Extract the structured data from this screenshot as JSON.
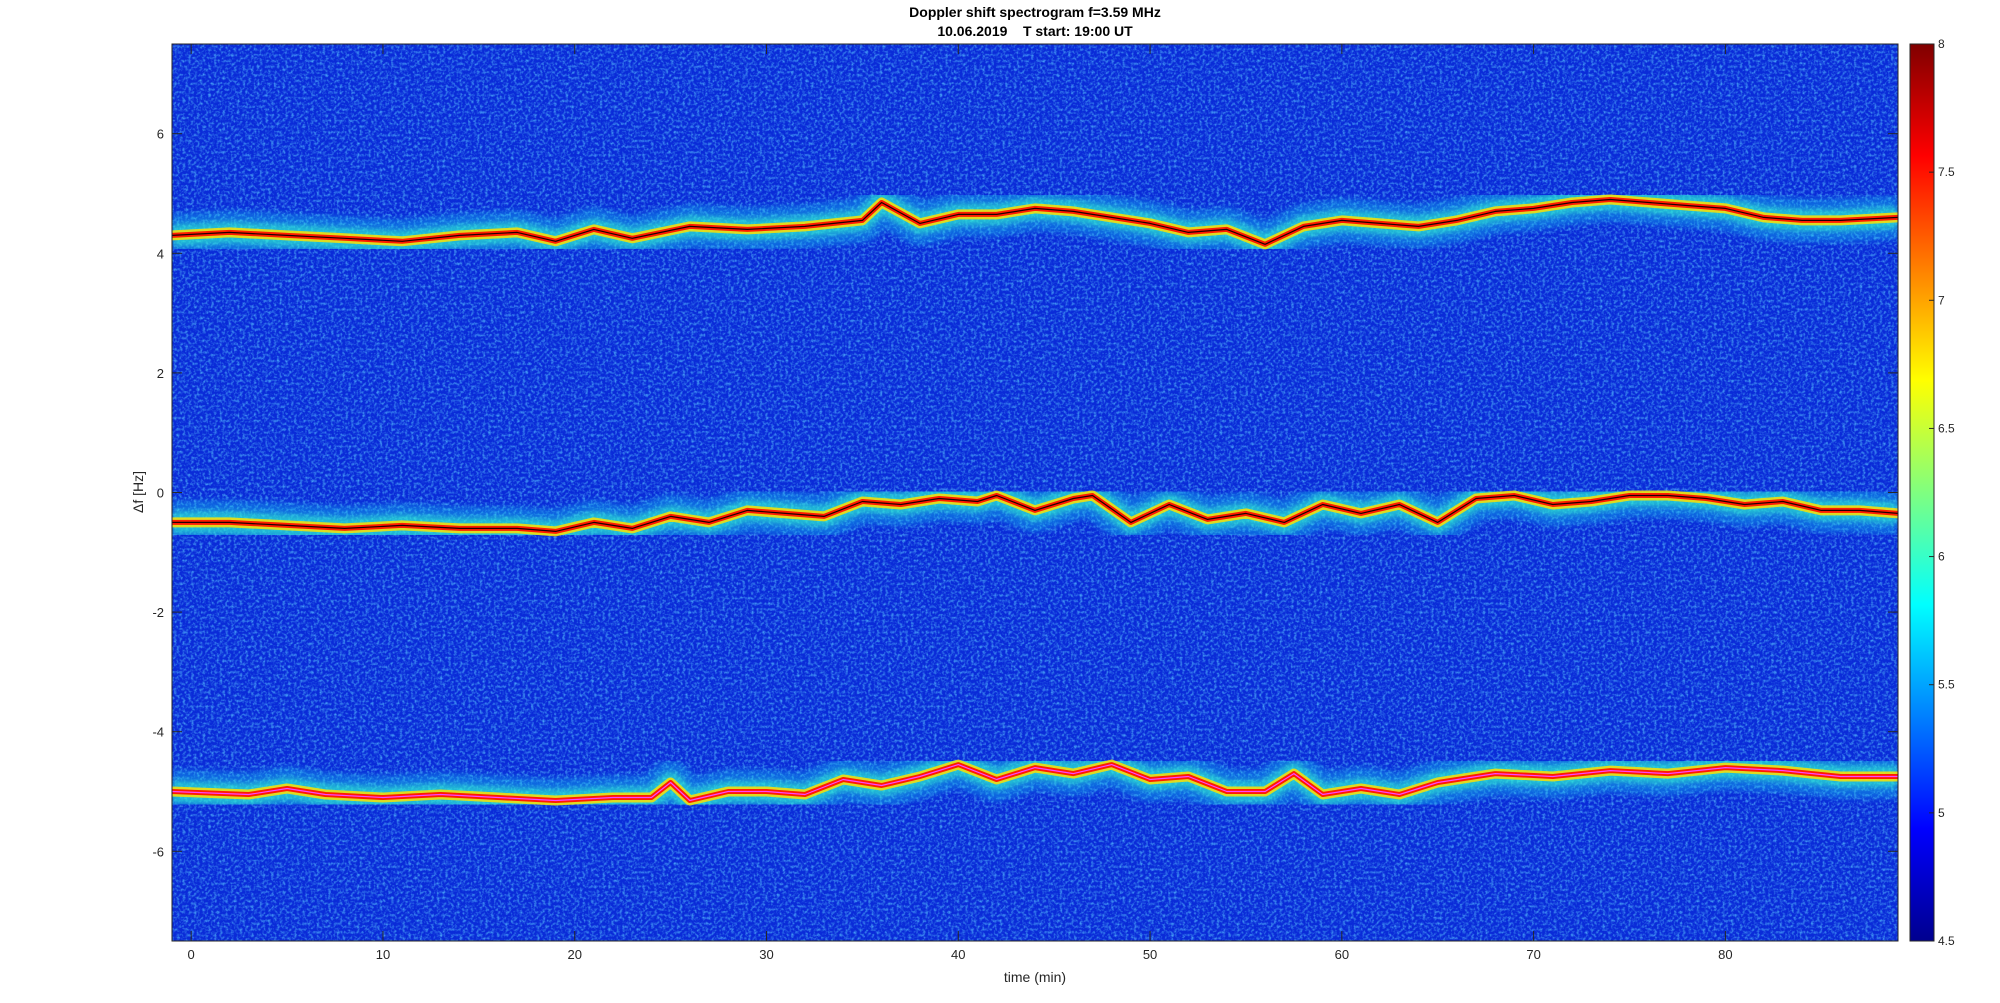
{
  "chart_data": {
    "type": "heatmap",
    "title": "Doppler shift spectrogram f=3.59 MHz",
    "subtitle": "10.06.2019    T start: 19:00 UT",
    "xlabel": "time (min)",
    "ylabel": "Δf [Hz]",
    "xlim": [
      -1,
      89
    ],
    "ylim": [
      -7.5,
      7.5
    ],
    "xticks": [
      0,
      10,
      20,
      30,
      40,
      50,
      60,
      70,
      80
    ],
    "yticks": [
      -6,
      -4,
      -2,
      0,
      2,
      4,
      6
    ],
    "colorbar": {
      "range": [
        4.5,
        8
      ],
      "ticks": [
        4.5,
        5,
        5.5,
        6,
        6.5,
        7,
        7.5,
        8
      ],
      "colormap": "jet"
    },
    "series": [
      {
        "x": [
          -1,
          2,
          5,
          8,
          11,
          14,
          17,
          19,
          21,
          23,
          26,
          29,
          32,
          35,
          36,
          38,
          40,
          42,
          44,
          46,
          48,
          50,
          52,
          54,
          56,
          58,
          60,
          62,
          64,
          66,
          68,
          70,
          72,
          74,
          76,
          78,
          80,
          82,
          84,
          86,
          89
        ],
        "y": [
          4.3,
          4.35,
          4.3,
          4.25,
          4.2,
          4.3,
          4.35,
          4.2,
          4.4,
          4.25,
          4.45,
          4.4,
          4.45,
          4.55,
          4.85,
          4.5,
          4.65,
          4.65,
          4.75,
          4.7,
          4.6,
          4.5,
          4.35,
          4.4,
          4.15,
          4.45,
          4.55,
          4.5,
          4.45,
          4.55,
          4.7,
          4.75,
          4.85,
          4.9,
          4.85,
          4.8,
          4.75,
          4.6,
          4.55,
          4.55,
          4.6
        ]
      },
      {
        "x": [
          -1,
          2,
          5,
          8,
          11,
          14,
          17,
          19,
          21,
          23,
          25,
          27,
          29,
          31,
          33,
          35,
          37,
          39,
          41,
          42,
          44,
          46,
          47,
          49,
          51,
          53,
          55,
          57,
          59,
          61,
          63,
          65,
          67,
          69,
          71,
          73,
          75,
          77,
          79,
          81,
          83,
          85,
          87,
          89
        ],
        "y": [
          -0.5,
          -0.5,
          -0.55,
          -0.6,
          -0.55,
          -0.6,
          -0.6,
          -0.65,
          -0.5,
          -0.6,
          -0.4,
          -0.5,
          -0.3,
          -0.35,
          -0.4,
          -0.15,
          -0.2,
          -0.1,
          -0.15,
          -0.05,
          -0.3,
          -0.1,
          -0.05,
          -0.5,
          -0.2,
          -0.45,
          -0.35,
          -0.5,
          -0.2,
          -0.35,
          -0.2,
          -0.5,
          -0.1,
          -0.05,
          -0.2,
          -0.15,
          -0.05,
          -0.05,
          -0.1,
          -0.2,
          -0.15,
          -0.3,
          -0.3,
          -0.35
        ]
      },
      {
        "x": [
          -1,
          3,
          5,
          7,
          10,
          13,
          16,
          19,
          22,
          24,
          25,
          26,
          28,
          30,
          32,
          34,
          36,
          38,
          40,
          42,
          44,
          46,
          48,
          50,
          52,
          54,
          56,
          57.5,
          59,
          61,
          63,
          65,
          68,
          71,
          74,
          77,
          80,
          83,
          86,
          89
        ],
        "y": [
          -5.0,
          -5.05,
          -4.95,
          -5.05,
          -5.1,
          -5.05,
          -5.1,
          -5.15,
          -5.1,
          -5.1,
          -4.85,
          -5.15,
          -5.0,
          -5.0,
          -5.05,
          -4.8,
          -4.9,
          -4.75,
          -4.55,
          -4.8,
          -4.6,
          -4.7,
          -4.55,
          -4.8,
          -4.75,
          -5.0,
          -5.0,
          -4.7,
          -5.05,
          -4.95,
          -5.05,
          -4.85,
          -4.7,
          -4.75,
          -4.65,
          -4.7,
          -4.6,
          -4.65,
          -4.75,
          -4.75
        ]
      }
    ]
  }
}
